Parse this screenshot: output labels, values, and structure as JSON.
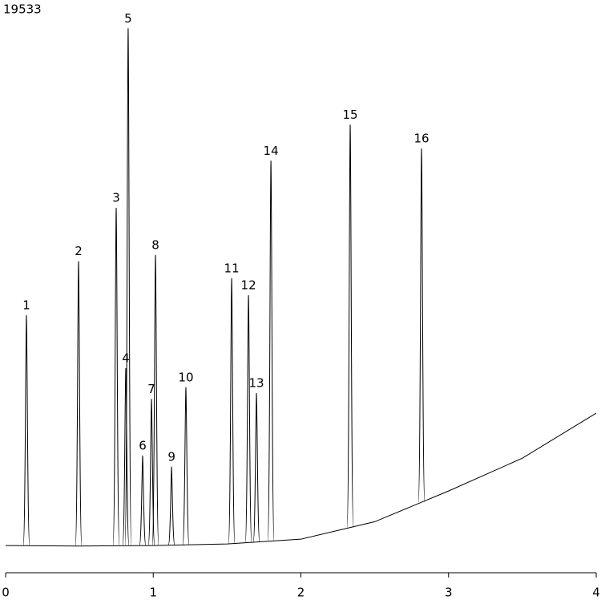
{
  "chart_data": {
    "type": "chromatogram",
    "title": "19533",
    "xlim": [
      0,
      4
    ],
    "xticks": [
      0,
      1,
      2,
      3,
      4
    ],
    "ylim": [
      0,
      100
    ],
    "color": "#000000",
    "baseline": {
      "x": [
        0,
        0.5,
        1,
        1.5,
        2,
        2.5,
        3,
        3.5,
        4
      ],
      "values": [
        1.5,
        1.4,
        1.5,
        1.8,
        2.7,
        6,
        11.8,
        18,
        26.5
      ]
    },
    "peaks": {
      "labels": [
        "1",
        "2",
        "3",
        "4",
        "5",
        "6",
        "7",
        "8",
        "9",
        "10",
        "11",
        "12",
        "13",
        "14",
        "15",
        "16"
      ],
      "x": [
        0.141,
        0.494,
        0.749,
        0.814,
        0.83,
        0.928,
        0.988,
        1.015,
        1.124,
        1.221,
        1.531,
        1.645,
        1.699,
        1.797,
        2.334,
        2.817
      ],
      "values": [
        45,
        55.2,
        65.3,
        35,
        99.2,
        18.5,
        29.2,
        56.4,
        16.4,
        31.4,
        52,
        48.8,
        30.3,
        74.2,
        81,
        76.5
      ]
    }
  }
}
